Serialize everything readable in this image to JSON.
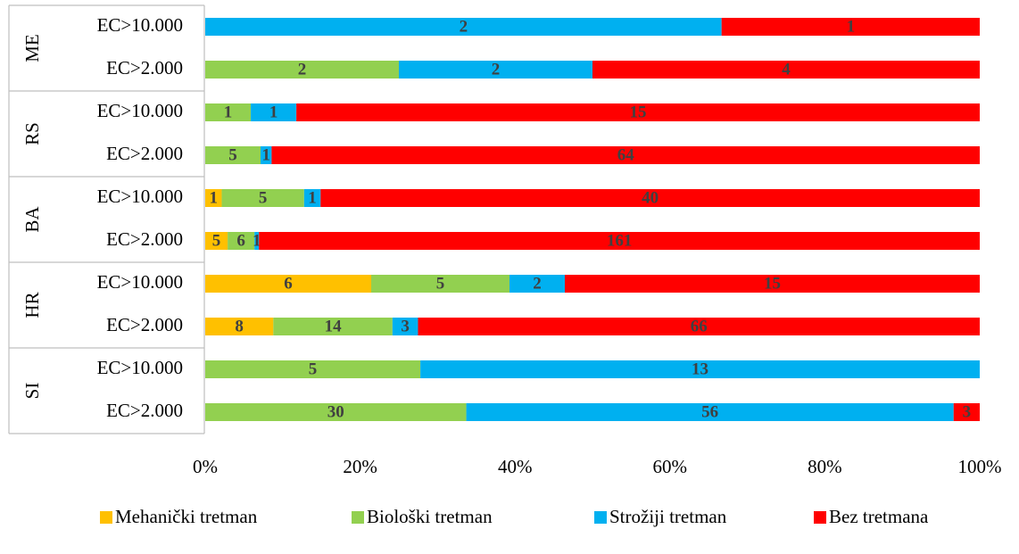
{
  "chart_data": {
    "type": "bar",
    "orientation": "horizontal",
    "stacked": "percent",
    "groups": [
      "ME",
      "RS",
      "BA",
      "HR",
      "SI"
    ],
    "categories": [
      "EC>10.000",
      "EC>2.000",
      "EC>10.000",
      "EC>2.000",
      "EC>10.000",
      "EC>2.000",
      "EC>10.000",
      "EC>2.000",
      "EC>10.000",
      "EC>2.000"
    ],
    "series": [
      {
        "name": "Mehanički tretman",
        "color": "#ffc000",
        "values": [
          null,
          null,
          null,
          null,
          1,
          5,
          6,
          8,
          null,
          null
        ]
      },
      {
        "name": "Biološki tretman",
        "color": "#92d050",
        "values": [
          null,
          2,
          1,
          5,
          5,
          6,
          5,
          14,
          5,
          30
        ]
      },
      {
        "name": "Strožiji tretman",
        "color": "#00b0f0",
        "values": [
          2,
          2,
          1,
          1,
          1,
          1,
          2,
          3,
          13,
          56
        ]
      },
      {
        "name": "Bez tretmana",
        "color": "#ff0000",
        "values": [
          1,
          4,
          15,
          64,
          40,
          161,
          15,
          66,
          null,
          3
        ]
      }
    ],
    "xlim": [
      0,
      100
    ],
    "xticks": [
      {
        "value": 0,
        "label": "0%"
      },
      {
        "value": 20,
        "label": "20%"
      },
      {
        "value": 40,
        "label": "40%"
      },
      {
        "value": 60,
        "label": "60%"
      },
      {
        "value": 80,
        "label": "80%"
      },
      {
        "value": 100,
        "label": "100%"
      }
    ],
    "legend": "bottom"
  }
}
